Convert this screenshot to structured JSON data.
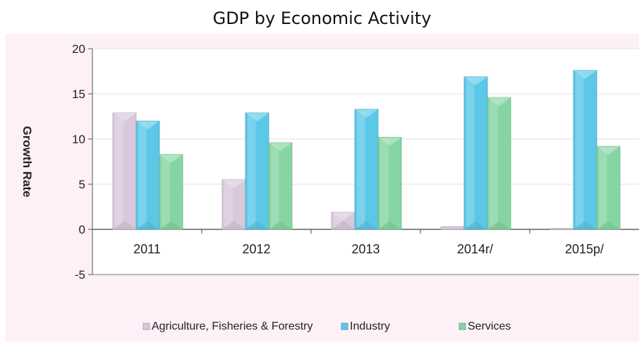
{
  "chart_data": {
    "type": "bar",
    "title": "GDP by Economic Activity",
    "xlabel": "",
    "ylabel": "Growth Rate",
    "categories": [
      "2011",
      "2012",
      "2013",
      "2014r/",
      "2015p/"
    ],
    "ylim": [
      -5,
      20
    ],
    "yticks": [
      -5,
      0,
      5,
      10,
      15,
      20
    ],
    "grid": true,
    "legend_position": "bottom",
    "series": [
      {
        "name": "Agriculture, Fisheries & Forestry",
        "color": "#d9c8dc",
        "values": [
          12.9,
          5.5,
          1.9,
          0.3,
          0.1
        ]
      },
      {
        "name": "Industry",
        "color": "#5cc8e8",
        "values": [
          12.0,
          12.9,
          13.3,
          16.9,
          17.6
        ]
      },
      {
        "name": "Services",
        "color": "#86d6a4",
        "values": [
          8.3,
          9.6,
          10.2,
          14.6,
          9.2
        ]
      }
    ]
  }
}
